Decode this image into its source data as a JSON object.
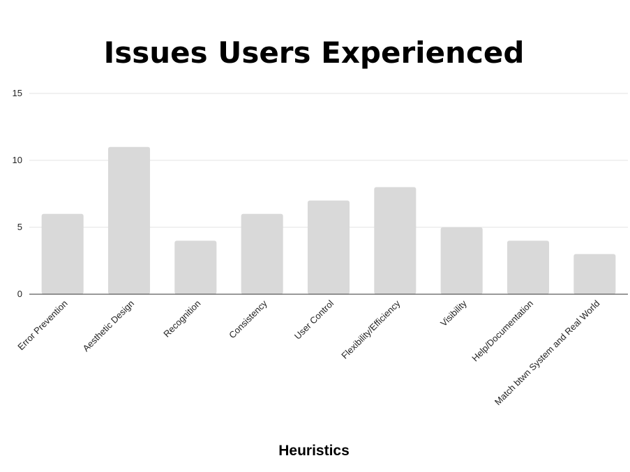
{
  "chart_data": {
    "type": "bar",
    "title": "Issues Users Experienced",
    "xlabel": "Heuristics",
    "ylabel": "",
    "categories": [
      "Error Prevention",
      "Aesthetic Design",
      "Recognition",
      "Consistency",
      "User Control",
      "Flexibility/Efficiency",
      "Visibility",
      "Help/Documentation",
      "Match btwn System and Real World"
    ],
    "values": [
      6,
      11,
      4,
      6,
      7,
      8,
      5,
      4,
      3
    ],
    "ylim": [
      0,
      15
    ],
    "yticks": [
      0,
      5,
      10,
      15
    ],
    "grid": true,
    "legend": "none",
    "colors": {
      "bar": "#d9d9d9",
      "grid": "#e3e3e3",
      "axis": "#333333",
      "text": "#000000"
    }
  }
}
